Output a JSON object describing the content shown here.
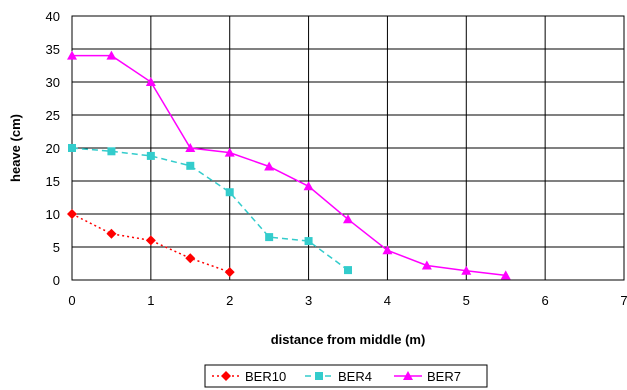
{
  "chart_data": {
    "type": "line",
    "title": "",
    "xlabel": "distance from middle (m)",
    "ylabel": "heave (cm)",
    "xlim": [
      0,
      7
    ],
    "ylim": [
      0,
      40
    ],
    "xticks": [
      "0",
      "1",
      "2",
      "3",
      "4",
      "5",
      "6",
      "7"
    ],
    "yticks": [
      "0",
      "5",
      "10",
      "15",
      "20",
      "25",
      "30",
      "35",
      "40"
    ],
    "grid": true,
    "legend_position": "bottom",
    "series": [
      {
        "name": "BER10",
        "color": "#ff0000",
        "marker": "diamond",
        "line_style": "dotted",
        "points": [
          [
            0,
            10
          ],
          [
            0.5,
            7
          ],
          [
            1,
            6
          ],
          [
            1.5,
            3.3
          ],
          [
            2,
            1.2
          ]
        ]
      },
      {
        "name": "BER4",
        "color": "#33cccc",
        "marker": "square",
        "line_style": "dashed",
        "points": [
          [
            0,
            20
          ],
          [
            0.5,
            19.5
          ],
          [
            1,
            18.8
          ],
          [
            1.5,
            17.3
          ],
          [
            2,
            13.3
          ],
          [
            2.5,
            6.5
          ],
          [
            3,
            5.9
          ],
          [
            3.5,
            1.5
          ]
        ]
      },
      {
        "name": "BER7",
        "color": "#ff00ff",
        "marker": "triangle",
        "line_style": "solid",
        "points": [
          [
            0,
            34
          ],
          [
            0.5,
            34
          ],
          [
            1,
            30
          ],
          [
            1.5,
            20
          ],
          [
            2,
            19.3
          ],
          [
            2.5,
            17.2
          ],
          [
            3,
            14.2
          ],
          [
            3.5,
            9.2
          ],
          [
            4,
            4.5
          ],
          [
            4.5,
            2.2
          ],
          [
            5,
            1.4
          ],
          [
            5.5,
            0.7
          ]
        ]
      }
    ]
  }
}
